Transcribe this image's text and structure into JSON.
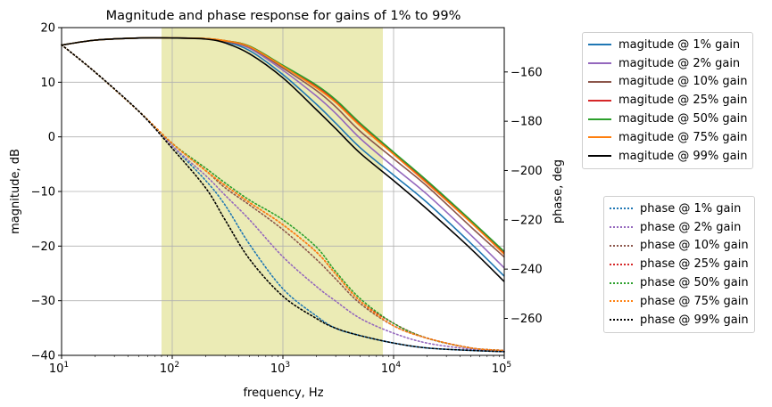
{
  "chart_data": {
    "type": "line",
    "title": "Magnitude and phase response for gains of 1% to 99%",
    "xlabel": "frequency, Hz",
    "ylabel": "magnitude, dB",
    "y2label": "phase, deg",
    "xscale": "log",
    "xlim": [
      10,
      100000
    ],
    "ylim": [
      -40,
      20
    ],
    "y2lim": [
      -275,
      -142
    ],
    "xticks": [
      10,
      100,
      1000,
      10000,
      100000
    ],
    "xtick_labels": [
      {
        "base": "10",
        "exp": "1"
      },
      {
        "base": "10",
        "exp": "2"
      },
      {
        "base": "10",
        "exp": "3"
      },
      {
        "base": "10",
        "exp": "4"
      },
      {
        "base": "10",
        "exp": "5"
      }
    ],
    "yticks": [
      -40,
      -30,
      -20,
      -10,
      0,
      10,
      20
    ],
    "ytick_labels": [
      "−40",
      "−30",
      "−20",
      "−10",
      "0",
      "10",
      "20"
    ],
    "y2ticks": [
      -260,
      -240,
      -220,
      -200,
      -180,
      -160
    ],
    "y2tick_labels": [
      "−260",
      "−240",
      "−220",
      "−200",
      "−180",
      "−160"
    ],
    "grid": true,
    "shaded_band": {
      "x_start": 80,
      "x_end": 8000,
      "color": "#e8e8a8"
    },
    "magnitude_legend_position": "upper-right-outside",
    "phase_legend_position": "center-right-outside",
    "magnitude_series": [
      {
        "name": "magitude @ 1% gain",
        "color": "#1f77b4",
        "points": [
          [
            10,
            16.8
          ],
          [
            20,
            17.7
          ],
          [
            50,
            18.1
          ],
          [
            100,
            18.1
          ],
          [
            200,
            18.0
          ],
          [
            300,
            17.4
          ],
          [
            500,
            15.8
          ],
          [
            1000,
            11.4
          ],
          [
            2000,
            6.0
          ],
          [
            3000,
            2.5
          ],
          [
            5000,
            -2.0
          ],
          [
            10000,
            -7.0
          ],
          [
            20000,
            -12.0
          ],
          [
            50000,
            -19.5
          ],
          [
            100000,
            -25.5
          ]
        ]
      },
      {
        "name": "magitude @ 2% gain",
        "color": "#9467bd",
        "points": [
          [
            10,
            16.8
          ],
          [
            20,
            17.7
          ],
          [
            50,
            18.1
          ],
          [
            100,
            18.1
          ],
          [
            200,
            18.0
          ],
          [
            300,
            17.5
          ],
          [
            500,
            16.2
          ],
          [
            1000,
            12.2
          ],
          [
            2000,
            7.5
          ],
          [
            3000,
            4.3
          ],
          [
            5000,
            -0.3
          ],
          [
            10000,
            -5.5
          ],
          [
            20000,
            -10.5
          ],
          [
            50000,
            -18.0
          ],
          [
            100000,
            -24.0
          ]
        ]
      },
      {
        "name": "magitude @ 10% gain",
        "color": "#8c564b",
        "points": [
          [
            10,
            16.8
          ],
          [
            20,
            17.7
          ],
          [
            50,
            18.1
          ],
          [
            100,
            18.1
          ],
          [
            200,
            18.0
          ],
          [
            300,
            17.5
          ],
          [
            500,
            16.4
          ],
          [
            1000,
            12.6
          ],
          [
            2000,
            8.5
          ],
          [
            3000,
            5.5
          ],
          [
            5000,
            1.0
          ],
          [
            10000,
            -4.0
          ],
          [
            20000,
            -9.0
          ],
          [
            50000,
            -16.5
          ],
          [
            100000,
            -22.0
          ]
        ]
      },
      {
        "name": "magitude @ 25% gain",
        "color": "#d62728",
        "points": [
          [
            10,
            16.8
          ],
          [
            20,
            17.7
          ],
          [
            50,
            18.1
          ],
          [
            100,
            18.1
          ],
          [
            200,
            18.0
          ],
          [
            300,
            17.6
          ],
          [
            500,
            16.6
          ],
          [
            1000,
            13.0
          ],
          [
            2000,
            9.3
          ],
          [
            3000,
            6.5
          ],
          [
            5000,
            2.2
          ],
          [
            10000,
            -3.0
          ],
          [
            20000,
            -8.3
          ],
          [
            50000,
            -15.5
          ],
          [
            100000,
            -21.3
          ]
        ]
      },
      {
        "name": "magitude @ 50% gain",
        "color": "#2ca02c",
        "points": [
          [
            10,
            16.8
          ],
          [
            20,
            17.7
          ],
          [
            50,
            18.1
          ],
          [
            100,
            18.1
          ],
          [
            200,
            18.0
          ],
          [
            300,
            17.6
          ],
          [
            500,
            16.6
          ],
          [
            1000,
            13.1
          ],
          [
            2000,
            9.5
          ],
          [
            3000,
            6.8
          ],
          [
            5000,
            2.5
          ],
          [
            10000,
            -2.8
          ],
          [
            20000,
            -8.0
          ],
          [
            50000,
            -15.3
          ],
          [
            100000,
            -21.0
          ]
        ]
      },
      {
        "name": "magitude @ 75% gain",
        "color": "#ff7f0e",
        "points": [
          [
            10,
            16.8
          ],
          [
            20,
            17.7
          ],
          [
            50,
            18.1
          ],
          [
            100,
            18.1
          ],
          [
            200,
            18.0
          ],
          [
            300,
            17.6
          ],
          [
            500,
            16.5
          ],
          [
            1000,
            12.9
          ],
          [
            2000,
            9.0
          ],
          [
            3000,
            6.3
          ],
          [
            5000,
            2.0
          ],
          [
            10000,
            -3.2
          ],
          [
            20000,
            -8.5
          ],
          [
            50000,
            -15.7
          ],
          [
            100000,
            -21.5
          ]
        ]
      },
      {
        "name": "magitude @ 99% gain",
        "color": "#000000",
        "points": [
          [
            10,
            16.8
          ],
          [
            20,
            17.7
          ],
          [
            50,
            18.1
          ],
          [
            100,
            18.1
          ],
          [
            200,
            17.9
          ],
          [
            300,
            17.2
          ],
          [
            500,
            15.2
          ],
          [
            1000,
            10.8
          ],
          [
            2000,
            5.0
          ],
          [
            3000,
            1.5
          ],
          [
            5000,
            -3.0
          ],
          [
            10000,
            -8.0
          ],
          [
            20000,
            -13.2
          ],
          [
            50000,
            -20.5
          ],
          [
            100000,
            -26.5
          ]
        ]
      }
    ],
    "phase_series": [
      {
        "name": "phase @ 1% gain",
        "color": "#1f77b4",
        "points": [
          [
            10,
            -149
          ],
          [
            20,
            -160
          ],
          [
            50,
            -176
          ],
          [
            100,
            -190
          ],
          [
            200,
            -204
          ],
          [
            300,
            -214
          ],
          [
            500,
            -230
          ],
          [
            1000,
            -248
          ],
          [
            2000,
            -259
          ],
          [
            3000,
            -264
          ],
          [
            5000,
            -267
          ],
          [
            10000,
            -270
          ],
          [
            20000,
            -272
          ],
          [
            50000,
            -273
          ],
          [
            100000,
            -273.5
          ]
        ]
      },
      {
        "name": "phase @ 2% gain",
        "color": "#9467bd",
        "points": [
          [
            10,
            -149
          ],
          [
            20,
            -160
          ],
          [
            50,
            -176
          ],
          [
            100,
            -190
          ],
          [
            200,
            -202
          ],
          [
            300,
            -210
          ],
          [
            500,
            -220
          ],
          [
            1000,
            -235
          ],
          [
            2000,
            -247
          ],
          [
            3000,
            -253
          ],
          [
            5000,
            -260
          ],
          [
            10000,
            -266
          ],
          [
            20000,
            -270
          ],
          [
            50000,
            -272.5
          ],
          [
            100000,
            -273.5
          ]
        ]
      },
      {
        "name": "phase @ 10% gain",
        "color": "#8c564b",
        "points": [
          [
            10,
            -149
          ],
          [
            20,
            -160
          ],
          [
            50,
            -176
          ],
          [
            100,
            -189
          ],
          [
            200,
            -200
          ],
          [
            300,
            -207
          ],
          [
            500,
            -214
          ],
          [
            1000,
            -224
          ],
          [
            2000,
            -236
          ],
          [
            3000,
            -244
          ],
          [
            5000,
            -254
          ],
          [
            10000,
            -263
          ],
          [
            20000,
            -268
          ],
          [
            50000,
            -272
          ],
          [
            100000,
            -273
          ]
        ]
      },
      {
        "name": "phase @ 25% gain",
        "color": "#d62728",
        "points": [
          [
            10,
            -149
          ],
          [
            20,
            -160
          ],
          [
            50,
            -176
          ],
          [
            100,
            -189
          ],
          [
            200,
            -200
          ],
          [
            300,
            -206
          ],
          [
            500,
            -213
          ],
          [
            1000,
            -222
          ],
          [
            2000,
            -233
          ],
          [
            3000,
            -242
          ],
          [
            5000,
            -253
          ],
          [
            10000,
            -262
          ],
          [
            20000,
            -268
          ],
          [
            50000,
            -272
          ],
          [
            100000,
            -273
          ]
        ]
      },
      {
        "name": "phase @ 50% gain",
        "color": "#2ca02c",
        "points": [
          [
            10,
            -149
          ],
          [
            20,
            -160
          ],
          [
            50,
            -176
          ],
          [
            100,
            -189
          ],
          [
            200,
            -199
          ],
          [
            300,
            -205
          ],
          [
            500,
            -212
          ],
          [
            1000,
            -220
          ],
          [
            2000,
            -231
          ],
          [
            3000,
            -241
          ],
          [
            5000,
            -252
          ],
          [
            10000,
            -262
          ],
          [
            20000,
            -268
          ],
          [
            50000,
            -272
          ],
          [
            100000,
            -273
          ]
        ]
      },
      {
        "name": "phase @ 75% gain",
        "color": "#ff7f0e",
        "points": [
          [
            10,
            -149
          ],
          [
            20,
            -160
          ],
          [
            50,
            -176
          ],
          [
            100,
            -189
          ],
          [
            200,
            -200
          ],
          [
            300,
            -206
          ],
          [
            500,
            -213
          ],
          [
            1000,
            -222
          ],
          [
            2000,
            -233
          ],
          [
            3000,
            -242
          ],
          [
            5000,
            -253
          ],
          [
            10000,
            -263
          ],
          [
            20000,
            -268
          ],
          [
            50000,
            -272
          ],
          [
            100000,
            -273
          ]
        ]
      },
      {
        "name": "phase @ 99% gain",
        "color": "#000000",
        "points": [
          [
            10,
            -149
          ],
          [
            20,
            -160
          ],
          [
            50,
            -176
          ],
          [
            100,
            -191
          ],
          [
            200,
            -207
          ],
          [
            300,
            -220
          ],
          [
            500,
            -236
          ],
          [
            1000,
            -251
          ],
          [
            2000,
            -260
          ],
          [
            3000,
            -264
          ],
          [
            5000,
            -267
          ],
          [
            10000,
            -270
          ],
          [
            20000,
            -272
          ],
          [
            50000,
            -273
          ],
          [
            100000,
            -273.5
          ]
        ]
      }
    ]
  }
}
